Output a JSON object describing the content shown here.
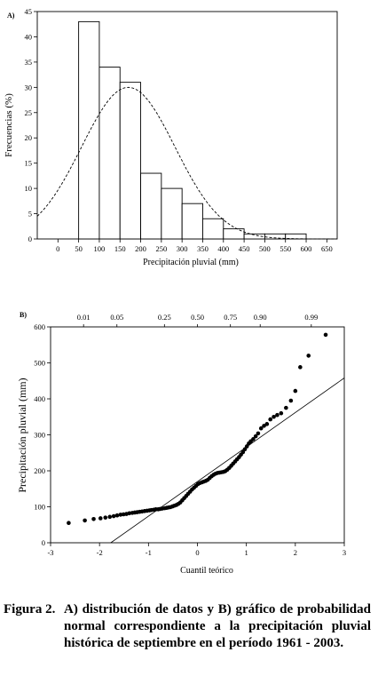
{
  "charts": [
    {
      "panel_label": "A)",
      "ylabel": "Frecuencias (%)",
      "xlabel": "Precipitación pluvial (mm)"
    },
    {
      "panel_label": "B)",
      "ylabel": "Precipitación pluvial (mm)",
      "xlabel": "Cuantil teórico"
    }
  ],
  "chart_data": [
    {
      "type": "bar",
      "panel": "A)",
      "xlabel": "Precipitación pluvial (mm)",
      "ylabel": "Frecuencias (%)",
      "xlim": [
        -50,
        675
      ],
      "ylim": [
        0,
        45
      ],
      "xticks": [
        0,
        50,
        100,
        150,
        200,
        250,
        300,
        350,
        400,
        450,
        500,
        550,
        600,
        650
      ],
      "yticks": [
        0,
        5,
        10,
        15,
        20,
        25,
        30,
        35,
        40,
        45
      ],
      "bins": [
        [
          50,
          100
        ],
        [
          100,
          150
        ],
        [
          150,
          200
        ],
        [
          200,
          250
        ],
        [
          250,
          300
        ],
        [
          300,
          350
        ],
        [
          350,
          400
        ],
        [
          400,
          450
        ],
        [
          450,
          500
        ],
        [
          500,
          550
        ],
        [
          550,
          600
        ]
      ],
      "values": [
        43,
        34,
        31,
        13,
        10,
        7,
        4,
        2,
        1,
        1,
        1
      ],
      "normal_curve": {
        "mean": 170,
        "sd": 113,
        "peak": 30
      },
      "grid": false,
      "legend": "none"
    },
    {
      "type": "scatter",
      "panel": "B)",
      "xlabel": "Cuantil teórico",
      "ylabel": "Precipitación pluvial (mm)",
      "xlim": [
        -3,
        3
      ],
      "ylim": [
        0,
        600
      ],
      "xticks": [
        -3,
        -2,
        -1,
        0,
        1,
        2,
        3
      ],
      "yticks": [
        0,
        100,
        200,
        300,
        400,
        500,
        600
      ],
      "top_axis_ticks": [
        {
          "label": "0.01",
          "q": -2.326
        },
        {
          "label": "0.05",
          "q": -1.645
        },
        {
          "label": "0.25",
          "q": -0.674
        },
        {
          "label": "0.50",
          "q": 0
        },
        {
          "label": "0.75",
          "q": 0.674
        },
        {
          "label": "0.90",
          "q": 1.282
        },
        {
          "label": "0.99",
          "q": 2.326
        }
      ],
      "reference_line": {
        "intercept": 170,
        "slope": 96
      },
      "points": [
        [
          -2.63,
          55
        ],
        [
          -2.3,
          62
        ],
        [
          -2.12,
          66
        ],
        [
          -1.98,
          68
        ],
        [
          -1.88,
          70
        ],
        [
          -1.79,
          72
        ],
        [
          -1.71,
          74
        ],
        [
          -1.64,
          76
        ],
        [
          -1.57,
          78
        ],
        [
          -1.51,
          79
        ],
        [
          -1.45,
          80
        ],
        [
          -1.39,
          82
        ],
        [
          -1.33,
          83
        ],
        [
          -1.28,
          84
        ],
        [
          -1.23,
          85
        ],
        [
          -1.18,
          86
        ],
        [
          -1.13,
          87
        ],
        [
          -1.08,
          88
        ],
        [
          -1.03,
          89
        ],
        [
          -0.98,
          90
        ],
        [
          -0.94,
          91
        ],
        [
          -0.89,
          92
        ],
        [
          -0.85,
          93
        ],
        [
          -0.8,
          93
        ],
        [
          -0.76,
          94
        ],
        [
          -0.72,
          95
        ],
        [
          -0.67,
          96
        ],
        [
          -0.63,
          97
        ],
        [
          -0.59,
          98
        ],
        [
          -0.55,
          99
        ],
        [
          -0.51,
          101
        ],
        [
          -0.47,
          103
        ],
        [
          -0.43,
          105
        ],
        [
          -0.39,
          108
        ],
        [
          -0.35,
          112
        ],
        [
          -0.31,
          118
        ],
        [
          -0.27,
          124
        ],
        [
          -0.23,
          130
        ],
        [
          -0.19,
          136
        ],
        [
          -0.15,
          142
        ],
        [
          -0.11,
          148
        ],
        [
          -0.07,
          153
        ],
        [
          -0.03,
          158
        ],
        [
          0.01,
          163
        ],
        [
          0.05,
          166
        ],
        [
          0.09,
          168
        ],
        [
          0.13,
          170
        ],
        [
          0.17,
          172
        ],
        [
          0.21,
          175
        ],
        [
          0.25,
          180
        ],
        [
          0.29,
          185
        ],
        [
          0.33,
          189
        ],
        [
          0.37,
          192
        ],
        [
          0.41,
          194
        ],
        [
          0.45,
          195
        ],
        [
          0.49,
          196
        ],
        [
          0.53,
          197
        ],
        [
          0.57,
          199
        ],
        [
          0.61,
          203
        ],
        [
          0.65,
          208
        ],
        [
          0.69,
          214
        ],
        [
          0.73,
          220
        ],
        [
          0.77,
          226
        ],
        [
          0.81,
          232
        ],
        [
          0.85,
          238
        ],
        [
          0.89,
          245
        ],
        [
          0.93,
          252
        ],
        [
          0.97,
          260
        ],
        [
          1.01,
          268
        ],
        [
          1.05,
          276
        ],
        [
          1.09,
          282
        ],
        [
          1.14,
          288
        ],
        [
          1.19,
          296
        ],
        [
          1.24,
          304
        ],
        [
          1.3,
          318
        ],
        [
          1.36,
          325
        ],
        [
          1.42,
          330
        ],
        [
          1.49,
          343
        ],
        [
          1.56,
          350
        ],
        [
          1.63,
          355
        ],
        [
          1.71,
          360
        ],
        [
          1.81,
          375
        ],
        [
          1.91,
          395
        ],
        [
          2.0,
          422
        ],
        [
          2.1,
          488
        ],
        [
          2.27,
          520
        ],
        [
          2.62,
          578
        ]
      ],
      "grid": false,
      "legend": "none"
    }
  ],
  "caption": {
    "label": "Figura 2.",
    "text": "A) distribución de datos y B) gráfico de probabilidad normal correspondiente a la precipitación pluvial histórica de septiembre en el período 1961 - 2003."
  }
}
